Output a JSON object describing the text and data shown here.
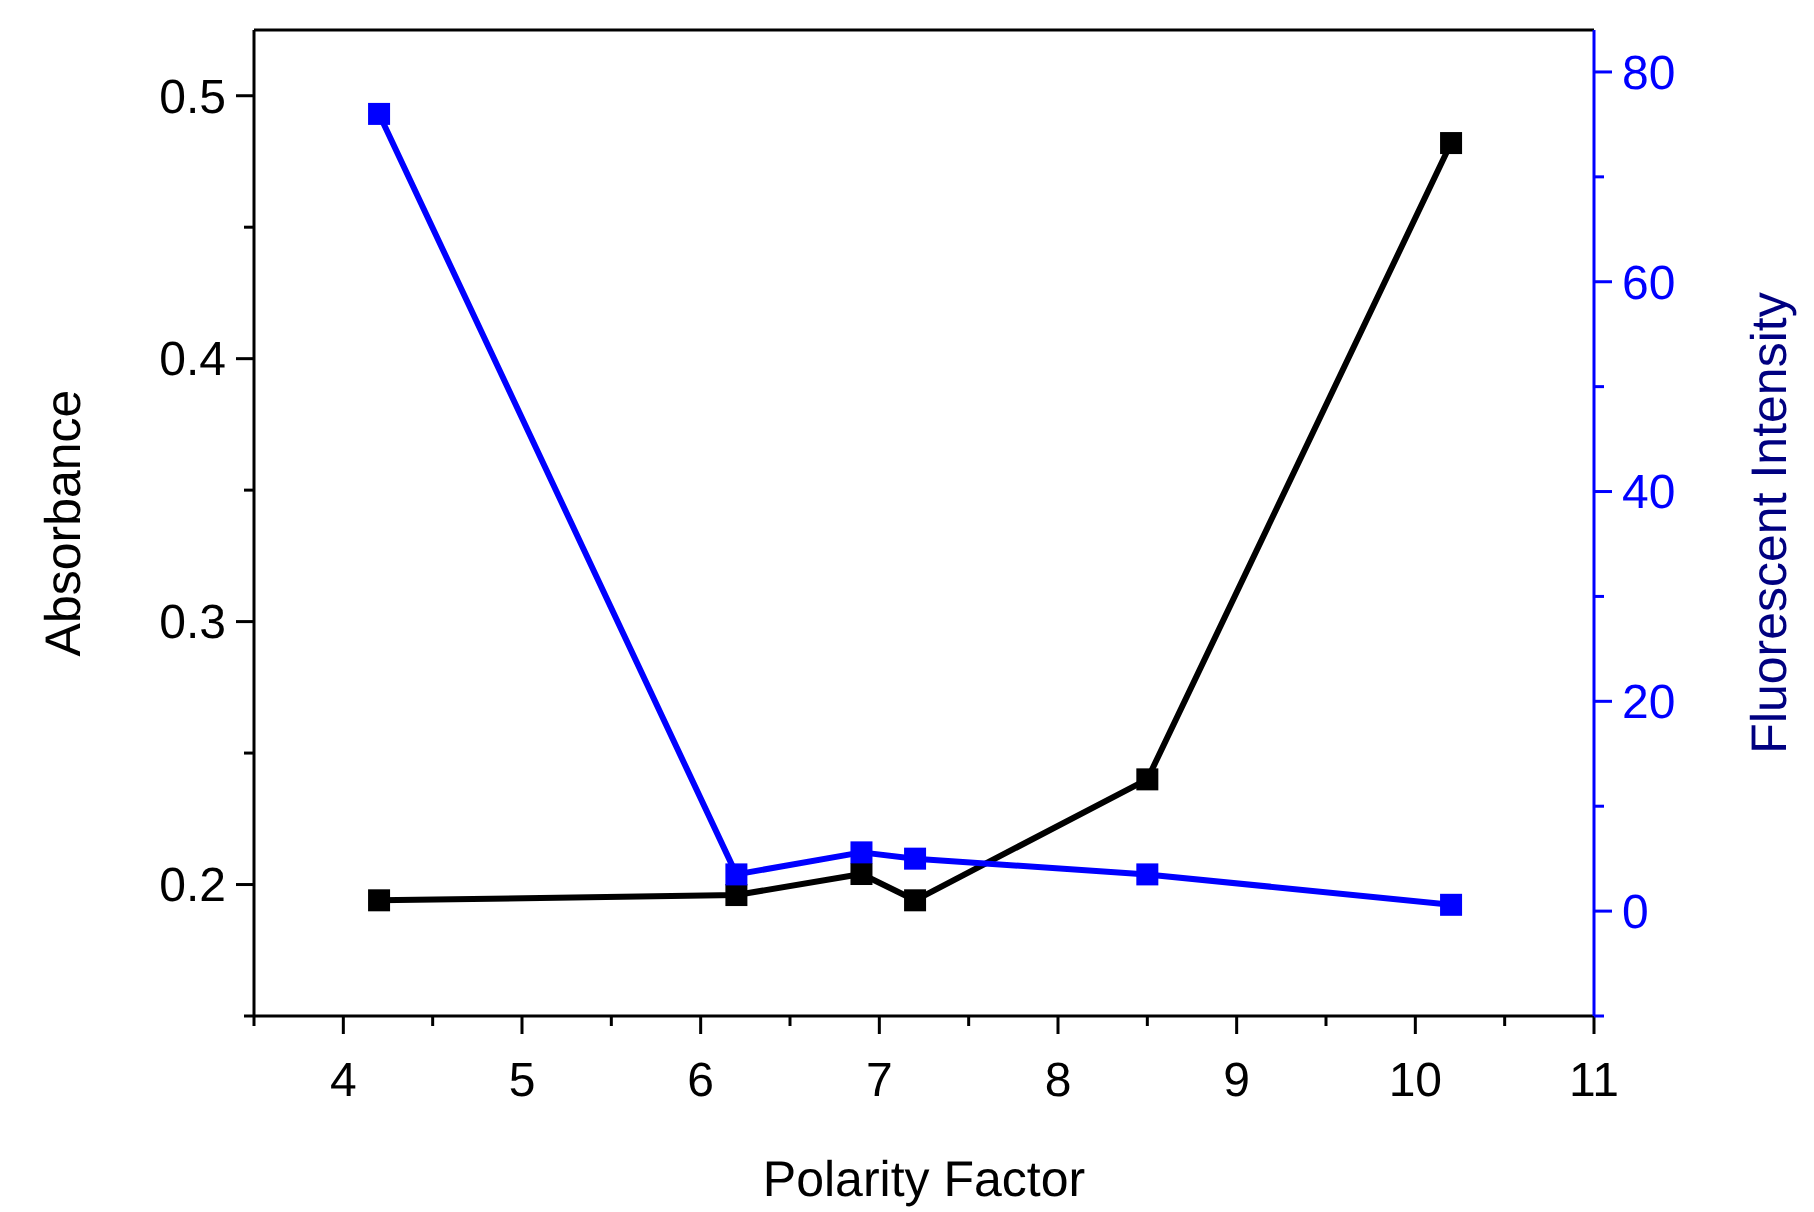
{
  "chart_data": {
    "type": "line",
    "xlabel": "Polarity Factor",
    "ylabel": "Absorbance",
    "y2label": "Fluorescent Intensity",
    "x": [
      4.2,
      6.2,
      6.9,
      7.2,
      8.5,
      10.2
    ],
    "series": [
      {
        "color": "#000000",
        "values": [
          0.194,
          0.196,
          0.204,
          0.194,
          0.24,
          0.482
        ]
      },
      {
        "color": "#0000ff",
        "axis": "y2",
        "values": [
          76,
          3.5,
          5.6,
          5.0,
          3.5,
          0.6
        ]
      }
    ],
    "xlim": [
      3.5,
      11
    ],
    "xticks": [
      {
        "value": 3.5,
        "label": null
      },
      4,
      {
        "value": 4.5,
        "label": null
      },
      5,
      {
        "value": 5.5,
        "label": null
      },
      6,
      {
        "value": 6.5,
        "label": null
      },
      7,
      {
        "value": 7.5,
        "label": null
      },
      8,
      {
        "value": 8.5,
        "label": null
      },
      9,
      {
        "value": 9.5,
        "label": null
      },
      10,
      {
        "value": 10.5,
        "label": null
      },
      11
    ],
    "ylim": [
      0.15,
      0.525
    ],
    "yticks": [
      {
        "value": 0.15,
        "label": null
      },
      0.2,
      {
        "value": 0.25,
        "label": null
      },
      0.3,
      {
        "value": 0.35,
        "label": null
      },
      0.4,
      {
        "value": 0.45,
        "label": null
      },
      0.5
    ],
    "y2lim": [
      -10,
      84
    ],
    "y2ticks": [
      {
        "value": -10,
        "label": null
      },
      0,
      {
        "value": 10,
        "label": null
      },
      20,
      {
        "value": 30,
        "label": null
      },
      40,
      {
        "value": 50,
        "label": null
      },
      60,
      {
        "value": 70,
        "label": null
      },
      80
    ],
    "marker": "square",
    "line_style": "solid"
  }
}
